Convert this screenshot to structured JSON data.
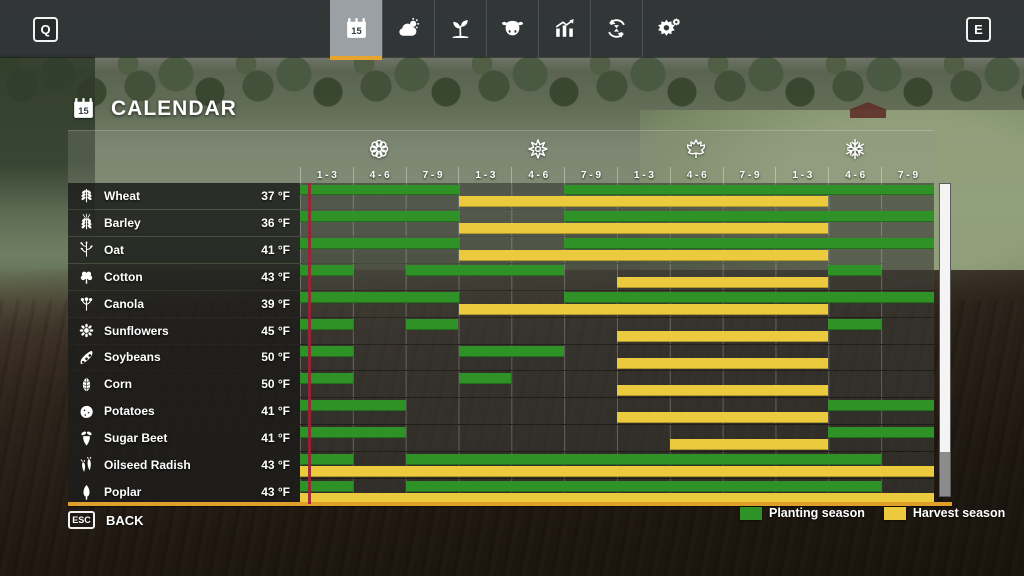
{
  "keys": {
    "prev": "Q",
    "next": "E"
  },
  "topbar": {
    "tabs": [
      {
        "id": "calendar",
        "icon": "calendar-icon",
        "selected": true
      },
      {
        "id": "weather",
        "icon": "weather-icon",
        "selected": false
      },
      {
        "id": "crops",
        "icon": "plant-icon",
        "selected": false
      },
      {
        "id": "animals",
        "icon": "cow-icon",
        "selected": false
      },
      {
        "id": "statistics",
        "icon": "statistics-icon",
        "selected": false
      },
      {
        "id": "rotation",
        "icon": "cycle-icon",
        "selected": false
      },
      {
        "id": "settings",
        "icon": "gear-icon",
        "selected": false
      }
    ]
  },
  "page": {
    "title": "CALENDAR",
    "title_icon": "calendar-icon"
  },
  "calendar": {
    "total_columns": 12,
    "current_time_column": 0.16,
    "seasons": [
      {
        "name": "spring",
        "icon": "flower-icon",
        "periods": [
          "1 - 3",
          "4 - 6",
          "7 - 9"
        ]
      },
      {
        "name": "summer",
        "icon": "sun-icon",
        "periods": [
          "1 - 3",
          "4 - 6",
          "7 - 9"
        ]
      },
      {
        "name": "autumn",
        "icon": "maple-leaf-icon",
        "periods": [
          "1 - 3",
          "4 - 6",
          "7 - 9"
        ]
      },
      {
        "name": "winter",
        "icon": "snowflake-icon",
        "periods": [
          "1 - 3",
          "4 - 6",
          "7 - 9"
        ]
      }
    ],
    "crops": [
      {
        "name": "Wheat",
        "icon": "wheat-icon",
        "germination_temp": "37 °F",
        "planting": [
          [
            0,
            3
          ],
          [
            5,
            12
          ]
        ],
        "harvest": [
          [
            3,
            10
          ]
        ]
      },
      {
        "name": "Barley",
        "icon": "barley-icon",
        "germination_temp": "36 °F",
        "planting": [
          [
            0,
            3
          ],
          [
            5,
            12
          ]
        ],
        "harvest": [
          [
            3,
            10
          ]
        ]
      },
      {
        "name": "Oat",
        "icon": "oat-icon",
        "germination_temp": "41 °F",
        "planting": [
          [
            0,
            3
          ],
          [
            5,
            12
          ]
        ],
        "harvest": [
          [
            3,
            10
          ]
        ]
      },
      {
        "name": "Cotton",
        "icon": "cotton-icon",
        "germination_temp": "43 °F",
        "planting": [
          [
            0,
            1
          ],
          [
            2,
            5
          ],
          [
            10,
            11
          ]
        ],
        "harvest": [
          [
            6,
            10
          ]
        ]
      },
      {
        "name": "Canola",
        "icon": "canola-icon",
        "germination_temp": "39 °F",
        "planting": [
          [
            0,
            3
          ],
          [
            5,
            12
          ]
        ],
        "harvest": [
          [
            3,
            10
          ]
        ]
      },
      {
        "name": "Sunflowers",
        "icon": "sunflower-icon",
        "germination_temp": "45 °F",
        "planting": [
          [
            0,
            1
          ],
          [
            2,
            3
          ],
          [
            10,
            11
          ]
        ],
        "harvest": [
          [
            6,
            10
          ]
        ]
      },
      {
        "name": "Soybeans",
        "icon": "soybeans-icon",
        "germination_temp": "50 °F",
        "planting": [
          [
            0,
            1
          ],
          [
            3,
            5
          ]
        ],
        "harvest": [
          [
            6,
            10
          ]
        ]
      },
      {
        "name": "Corn",
        "icon": "corn-icon",
        "germination_temp": "50 °F",
        "planting": [
          [
            0,
            1
          ],
          [
            3,
            4
          ]
        ],
        "harvest": [
          [
            6,
            10
          ]
        ]
      },
      {
        "name": "Potatoes",
        "icon": "potatoes-icon",
        "germination_temp": "41 °F",
        "planting": [
          [
            0,
            2
          ],
          [
            10,
            12
          ]
        ],
        "harvest": [
          [
            6,
            10
          ]
        ]
      },
      {
        "name": "Sugar Beet",
        "icon": "sugar-beet-icon",
        "germination_temp": "41 °F",
        "planting": [
          [
            0,
            2
          ],
          [
            10,
            12
          ]
        ],
        "harvest": [
          [
            7,
            10
          ]
        ]
      },
      {
        "name": "Oilseed Radish",
        "icon": "oilseed-radish-icon",
        "germination_temp": "43 °F",
        "planting": [
          [
            0,
            1
          ],
          [
            2,
            11
          ]
        ],
        "harvest": [
          [
            0,
            12
          ]
        ]
      },
      {
        "name": "Poplar",
        "icon": "poplar-icon",
        "germination_temp": "43 °F",
        "planting": [
          [
            0,
            1
          ],
          [
            2,
            11
          ]
        ],
        "harvest": [
          [
            0,
            12
          ]
        ]
      }
    ]
  },
  "legend": [
    {
      "label": "Planting season",
      "color": "#2e9226"
    },
    {
      "label": "Harvest season",
      "color": "#ebcb3d"
    }
  ],
  "back": {
    "key": "ESC",
    "label": "BACK"
  },
  "colors": {
    "planting_green": "#2e9226",
    "harvest_yellow": "#ebcb3d",
    "accent_orange": "#e8a52e",
    "current_day_line": "#9e2136",
    "selected_tab_bg": "#9aa0a3"
  }
}
